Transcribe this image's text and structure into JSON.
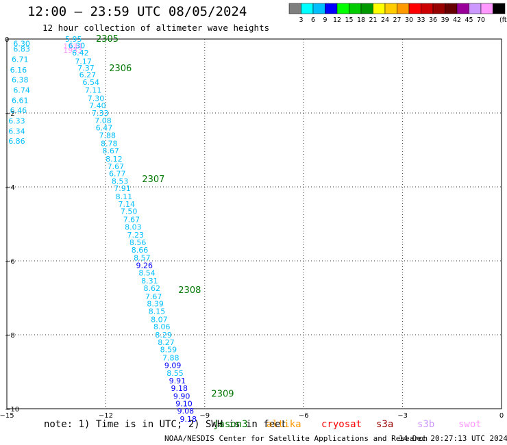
{
  "header": {
    "title": "12:00 — 23:59 UTC 08/05/2024",
    "subtitle": "12 hour collection of altimeter wave heights"
  },
  "legend": {
    "unit_label": "(ft)",
    "bins": [
      {
        "color": "#7f7f7f",
        "label": ""
      },
      {
        "color": "#00ffff",
        "label": "3"
      },
      {
        "color": "#00bfff",
        "label": "6"
      },
      {
        "color": "#0000ff",
        "label": "9"
      },
      {
        "color": "#00ff00",
        "label": "12"
      },
      {
        "color": "#00cc00",
        "label": "15"
      },
      {
        "color": "#009900",
        "label": "18"
      },
      {
        "color": "#ffff00",
        "label": "21"
      },
      {
        "color": "#ffcc00",
        "label": "24"
      },
      {
        "color": "#ff9900",
        "label": "27"
      },
      {
        "color": "#ff0000",
        "label": "30"
      },
      {
        "color": "#cc0000",
        "label": "33"
      },
      {
        "color": "#990000",
        "label": "36"
      },
      {
        "color": "#660000",
        "label": "39"
      },
      {
        "color": "#990099",
        "label": "42"
      },
      {
        "color": "#cc99ff",
        "label": "45"
      },
      {
        "color": "#ff99ff",
        "label": "70"
      },
      {
        "color": "#000000",
        "label": ""
      }
    ]
  },
  "footer": {
    "note": "note:  1) Time is in UTC; 2) SWH is in feet",
    "credit": "NOAA/NESDIS Center for Satellite Applications and Research",
    "timestamp": "14 Dec 20:27:13 UTC 2024",
    "satellites": [
      {
        "name": "jason3",
        "color": "#007700"
      },
      {
        "name": "altika",
        "color": "#ff9900"
      },
      {
        "name": "cryosat",
        "color": "#ff0000"
      },
      {
        "name": "s3a",
        "color": "#990000"
      },
      {
        "name": "s3b",
        "color": "#cc99ff"
      },
      {
        "name": "swot",
        "color": "#ff99ff"
      }
    ]
  },
  "chart_data": {
    "type": "scatter",
    "title": "",
    "xlabel": "",
    "ylabel": "",
    "xlim": [
      -15,
      0
    ],
    "ylim": [
      -10,
      0
    ],
    "x_ticks": [
      -15,
      -12,
      -9,
      -6,
      -3,
      0
    ],
    "y_ticks": [
      -10,
      -8,
      -6,
      -4,
      -2,
      0
    ],
    "grid": true,
    "time_labels": [
      {
        "text": "2305",
        "x": -12.3,
        "y": 0.0,
        "color": "#007700"
      },
      {
        "text": "2306",
        "x": -11.9,
        "y": -0.8,
        "color": "#007700"
      },
      {
        "text": "2307",
        "x": -10.9,
        "y": -3.8,
        "color": "#007700"
      },
      {
        "text": "2308",
        "x": -9.8,
        "y": -6.8,
        "color": "#007700"
      },
      {
        "text": "2309",
        "x": -8.8,
        "y": -9.6,
        "color": "#007700"
      }
    ],
    "series": [
      {
        "points": [
          {
            "x": -14.55,
            "y": -0.12,
            "v": "6.30",
            "color": "#00bfff"
          },
          {
            "x": -14.55,
            "y": -0.27,
            "v": "6.83",
            "color": "#00bfff"
          },
          {
            "x": -14.6,
            "y": -0.55,
            "v": "6.71",
            "color": "#00bfff"
          },
          {
            "x": -14.65,
            "y": -0.83,
            "v": "6.16",
            "color": "#00bfff"
          },
          {
            "x": -14.6,
            "y": -1.1,
            "v": "6.38",
            "color": "#00bfff"
          },
          {
            "x": -14.55,
            "y": -1.38,
            "v": "6.74",
            "color": "#00bfff"
          },
          {
            "x": -14.6,
            "y": -1.66,
            "v": "6.61",
            "color": "#00bfff"
          },
          {
            "x": -14.65,
            "y": -1.93,
            "v": "6.46",
            "color": "#00bfff"
          },
          {
            "x": -14.7,
            "y": -2.21,
            "v": "6.33",
            "color": "#00bfff"
          },
          {
            "x": -14.7,
            "y": -2.49,
            "v": "6.34",
            "color": "#00bfff"
          },
          {
            "x": -14.7,
            "y": -2.76,
            "v": "6.86",
            "color": "#00bfff"
          }
        ]
      },
      {
        "points": [
          {
            "x": -13.0,
            "y": -0.19,
            "v": "1934",
            "color": "#ff99ff"
          },
          {
            "x": -13.0,
            "y": -0.3,
            "v": "1933",
            "color": "#ff99ff"
          }
        ]
      },
      {
        "points": [
          {
            "x": -12.98,
            "y": 0.0,
            "v": "5.95",
            "color": "#00bfff"
          },
          {
            "x": -12.88,
            "y": -0.18,
            "v": "6.30",
            "color": "#00bfff"
          },
          {
            "x": -12.77,
            "y": -0.37,
            "v": "6.42",
            "color": "#00bfff"
          },
          {
            "x": -12.68,
            "y": -0.6,
            "v": "7.17",
            "color": "#00bfff"
          },
          {
            "x": -12.6,
            "y": -0.78,
            "v": "7.37",
            "color": "#00bfff"
          },
          {
            "x": -12.55,
            "y": -0.96,
            "v": "6.27",
            "color": "#00bfff"
          },
          {
            "x": -12.45,
            "y": -1.17,
            "v": "6.54",
            "color": "#00bfff"
          },
          {
            "x": -12.38,
            "y": -1.38,
            "v": "7.11",
            "color": "#00bfff"
          },
          {
            "x": -12.3,
            "y": -1.6,
            "v": "7.30",
            "color": "#00bfff"
          },
          {
            "x": -12.25,
            "y": -1.8,
            "v": "7.40",
            "color": "#00bfff"
          },
          {
            "x": -12.17,
            "y": -2.0,
            "v": "7.33",
            "color": "#00bfff"
          },
          {
            "x": -12.08,
            "y": -2.2,
            "v": "7.08",
            "color": "#00bfff"
          },
          {
            "x": -12.05,
            "y": -2.4,
            "v": "6.47",
            "color": "#00bfff"
          },
          {
            "x": -11.95,
            "y": -2.6,
            "v": "7.88",
            "color": "#00bfff"
          },
          {
            "x": -11.9,
            "y": -2.82,
            "v": "8.78",
            "color": "#00bfff"
          },
          {
            "x": -11.85,
            "y": -3.02,
            "v": "8.67",
            "color": "#00bfff"
          },
          {
            "x": -11.75,
            "y": -3.24,
            "v": "8.12",
            "color": "#00bfff"
          },
          {
            "x": -11.7,
            "y": -3.44,
            "v": "7.67",
            "color": "#00bfff"
          },
          {
            "x": -11.65,
            "y": -3.64,
            "v": "6.77",
            "color": "#00bfff"
          },
          {
            "x": -11.57,
            "y": -3.84,
            "v": "8.53",
            "color": "#00bfff"
          },
          {
            "x": -11.5,
            "y": -4.04,
            "v": "7.91",
            "color": "#00bfff"
          },
          {
            "x": -11.45,
            "y": -4.26,
            "v": "8.11",
            "color": "#00bfff"
          },
          {
            "x": -11.37,
            "y": -4.46,
            "v": "7.14",
            "color": "#00bfff"
          },
          {
            "x": -11.3,
            "y": -4.66,
            "v": "7.50",
            "color": "#00bfff"
          },
          {
            "x": -11.22,
            "y": -4.88,
            "v": "7.67",
            "color": "#00bfff"
          },
          {
            "x": -11.17,
            "y": -5.08,
            "v": "8.03",
            "color": "#00bfff"
          },
          {
            "x": -11.1,
            "y": -5.3,
            "v": "7.23",
            "color": "#00bfff"
          },
          {
            "x": -11.03,
            "y": -5.5,
            "v": "8.56",
            "color": "#00bfff"
          },
          {
            "x": -10.97,
            "y": -5.7,
            "v": "8.66",
            "color": "#00bfff"
          },
          {
            "x": -10.9,
            "y": -5.92,
            "v": "8.57",
            "color": "#00bfff"
          },
          {
            "x": -10.83,
            "y": -6.12,
            "v": "9.26",
            "color": "#0000ff"
          },
          {
            "x": -10.75,
            "y": -6.32,
            "v": "8.54",
            "color": "#00bfff"
          },
          {
            "x": -10.67,
            "y": -6.54,
            "v": "8.31",
            "color": "#00bfff"
          },
          {
            "x": -10.6,
            "y": -6.74,
            "v": "8.62",
            "color": "#00bfff"
          },
          {
            "x": -10.55,
            "y": -6.96,
            "v": "7.67",
            "color": "#00bfff"
          },
          {
            "x": -10.5,
            "y": -7.16,
            "v": "8.39",
            "color": "#00bfff"
          },
          {
            "x": -10.45,
            "y": -7.36,
            "v": "8.15",
            "color": "#00bfff"
          },
          {
            "x": -10.38,
            "y": -7.58,
            "v": "8.07",
            "color": "#00bfff"
          },
          {
            "x": -10.3,
            "y": -7.78,
            "v": "8.06",
            "color": "#00bfff"
          },
          {
            "x": -10.25,
            "y": -8.0,
            "v": "8.29",
            "color": "#00bfff"
          },
          {
            "x": -10.17,
            "y": -8.2,
            "v": "8.27",
            "color": "#00bfff"
          },
          {
            "x": -10.1,
            "y": -8.4,
            "v": "8.59",
            "color": "#00bfff"
          },
          {
            "x": -10.03,
            "y": -8.62,
            "v": "7.88",
            "color": "#00bfff"
          },
          {
            "x": -9.97,
            "y": -8.82,
            "v": "9.09",
            "color": "#0000ff"
          },
          {
            "x": -9.9,
            "y": -9.04,
            "v": "8.55",
            "color": "#00bfff"
          },
          {
            "x": -9.83,
            "y": -9.24,
            "v": "9.91",
            "color": "#0000ff"
          },
          {
            "x": -9.77,
            "y": -9.44,
            "v": "9.18",
            "color": "#0000ff"
          },
          {
            "x": -9.7,
            "y": -9.66,
            "v": "9.90",
            "color": "#0000ff"
          },
          {
            "x": -9.63,
            "y": -9.86,
            "v": "9.10",
            "color": "#0000ff"
          },
          {
            "x": -9.58,
            "y": -10.06,
            "v": "9.08",
            "color": "#0000ff"
          },
          {
            "x": -9.5,
            "y": -10.28,
            "v": "9.18",
            "color": "#0000ff"
          }
        ]
      }
    ]
  }
}
